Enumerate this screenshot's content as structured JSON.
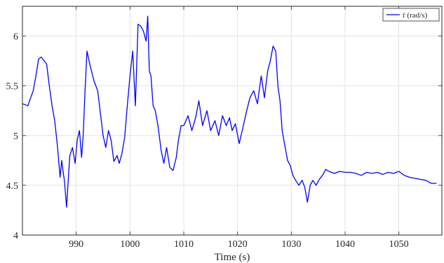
{
  "chart_data": {
    "type": "line",
    "xlabel": "Time (s)",
    "ylabel": "",
    "xlim": [
      980,
      1058
    ],
    "ylim": [
      4,
      6.3
    ],
    "xticks": [
      990,
      1000,
      1010,
      1020,
      1030,
      1040,
      1050
    ],
    "yticks": [
      4,
      4.5,
      5,
      5.5,
      6
    ],
    "grid": true,
    "legend_position": "top-right",
    "series": [
      {
        "name": "ṙ (rad/s)",
        "color": "#0000ff",
        "x": [
          980.0,
          981.0,
          982.0,
          982.5,
          983.0,
          983.5,
          984.5,
          985.0,
          985.5,
          986.0,
          986.5,
          987.0,
          987.3,
          987.6,
          987.8,
          988.2,
          988.8,
          989.3,
          989.8,
          990.2,
          990.6,
          991.0,
          991.3,
          991.6,
          992.0,
          992.6,
          993.3,
          994.0,
          994.6,
          995.0,
          995.5,
          996.0,
          996.5,
          997.0,
          997.6,
          998.0,
          998.5,
          999.0,
          999.5,
          1000.0,
          1000.5,
          1001.0,
          1001.5,
          1002.0,
          1002.5,
          1003.0,
          1003.3,
          1003.6,
          1003.9,
          1004.3,
          1004.7,
          1005.2,
          1005.8,
          1006.3,
          1006.8,
          1007.4,
          1008.0,
          1008.6,
          1009.0,
          1009.5,
          1010.0,
          1010.8,
          1011.5,
          1012.2,
          1012.8,
          1013.5,
          1014.3,
          1015.0,
          1015.8,
          1016.5,
          1017.2,
          1017.9,
          1018.5,
          1019.0,
          1019.6,
          1020.3,
          1021.0,
          1021.7,
          1022.3,
          1023.0,
          1023.7,
          1024.4,
          1025.0,
          1025.6,
          1026.1,
          1026.6,
          1027.1,
          1027.5,
          1027.9,
          1028.3,
          1028.8,
          1029.3,
          1029.8,
          1030.3,
          1030.8,
          1031.4,
          1032.0,
          1032.5,
          1033.0,
          1033.5,
          1034.0,
          1034.6,
          1035.2,
          1035.8,
          1036.4,
          1037.0,
          1038.0,
          1039.0,
          1040.0,
          1041.0,
          1042.0,
          1043.0,
          1044.0,
          1045.0,
          1046.0,
          1047.0,
          1048.0,
          1049.0,
          1050.0,
          1051.0,
          1052.0,
          1053.0,
          1054.0,
          1055.0,
          1056.0,
          1057.0
        ],
        "y": [
          5.32,
          5.3,
          5.45,
          5.6,
          5.77,
          5.79,
          5.72,
          5.5,
          5.3,
          5.15,
          4.9,
          4.58,
          4.75,
          4.62,
          4.55,
          4.28,
          4.8,
          4.88,
          4.72,
          4.96,
          5.05,
          4.78,
          5.0,
          5.4,
          5.85,
          5.7,
          5.55,
          5.45,
          5.18,
          5.0,
          4.88,
          5.05,
          4.95,
          4.74,
          4.8,
          4.72,
          4.82,
          4.98,
          5.3,
          5.6,
          5.85,
          5.3,
          6.12,
          6.1,
          6.05,
          5.95,
          6.2,
          5.65,
          5.6,
          5.3,
          5.25,
          5.1,
          4.85,
          4.72,
          4.88,
          4.68,
          4.65,
          4.78,
          4.95,
          5.1,
          5.1,
          5.2,
          5.05,
          5.18,
          5.35,
          5.1,
          5.25,
          5.05,
          5.15,
          5.0,
          5.2,
          5.1,
          5.18,
          5.05,
          5.12,
          4.92,
          5.08,
          5.25,
          5.38,
          5.45,
          5.32,
          5.6,
          5.38,
          5.65,
          5.75,
          5.9,
          5.85,
          5.5,
          5.35,
          5.05,
          4.9,
          4.75,
          4.7,
          4.6,
          4.55,
          4.5,
          4.55,
          4.48,
          4.33,
          4.5,
          4.55,
          4.5,
          4.56,
          4.6,
          4.66,
          4.64,
          4.62,
          4.64,
          4.63,
          4.63,
          4.62,
          4.6,
          4.63,
          4.62,
          4.63,
          4.61,
          4.63,
          4.62,
          4.64,
          4.6,
          4.58,
          4.57,
          4.56,
          4.55,
          4.52,
          4.52
        ]
      }
    ]
  }
}
